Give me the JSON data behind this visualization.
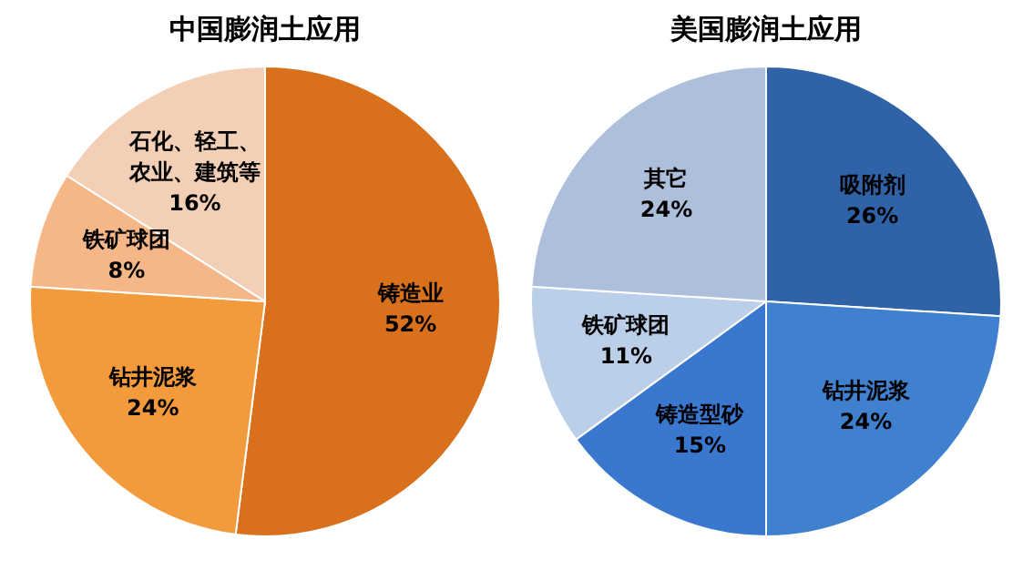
{
  "chart_data": [
    {
      "type": "pie",
      "title": "中国膨润土应用",
      "categories": [
        "铸造业",
        "钻井泥浆",
        "铁矿球团",
        "石化、轻工、农业、建筑等"
      ],
      "values": [
        52,
        24,
        8,
        16
      ],
      "value_labels": [
        "52%",
        "24%",
        "8%",
        "16%"
      ],
      "colors": [
        "#d8701c",
        "#f39a3c",
        "#f5b688",
        "#f3cfb6"
      ]
    },
    {
      "type": "pie",
      "title": "美国膨润土应用",
      "categories": [
        "吸附剂",
        "钻井泥浆",
        "铸造型砂",
        "铁矿球团",
        "其它"
      ],
      "values": [
        26,
        24,
        15,
        11,
        24
      ],
      "value_labels": [
        "26%",
        "24%",
        "15%",
        "11%",
        "24%"
      ],
      "colors": [
        "#2f62a6",
        "#3f80cf",
        "#3a78d0",
        "#bccfe9",
        "#aebfdc"
      ]
    }
  ]
}
